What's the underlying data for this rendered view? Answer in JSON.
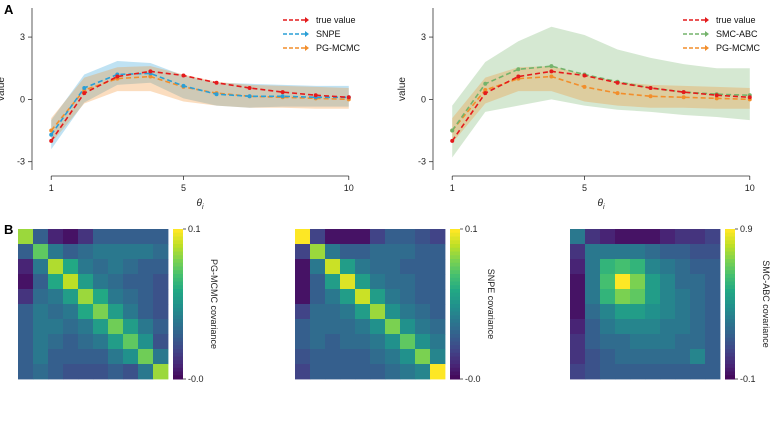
{
  "panels": {
    "a": "A",
    "b": "B"
  },
  "chart_data": [
    {
      "type": "line",
      "xlabel": "θi",
      "ylabel": "value",
      "xlim": [
        0.6,
        10.4
      ],
      "ylim": [
        -3.4,
        4.4
      ],
      "x_ticks": [
        1,
        5,
        10
      ],
      "y_ticks": [
        -3,
        0,
        3
      ],
      "grid": false,
      "legend_position": "top-right",
      "x": [
        1,
        2,
        3,
        4,
        5,
        6,
        7,
        8,
        9,
        10
      ],
      "series": [
        {
          "name": "true value",
          "color": "#e41a1c",
          "style": "dashed",
          "values": [
            -2.0,
            0.3,
            1.1,
            1.35,
            1.15,
            0.8,
            0.55,
            0.35,
            0.2,
            0.1
          ]
        },
        {
          "name": "SNPE",
          "color": "#2a9fd6",
          "style": "dashed",
          "values": [
            -1.7,
            0.55,
            1.2,
            1.25,
            0.65,
            0.25,
            0.15,
            0.15,
            0.1,
            0.1
          ],
          "band_lower": [
            -2.4,
            -0.15,
            0.7,
            0.8,
            0.05,
            -0.3,
            -0.4,
            -0.35,
            -0.35,
            -0.35
          ],
          "band_upper": [
            -1.0,
            1.2,
            1.85,
            1.75,
            1.15,
            0.8,
            0.75,
            0.7,
            0.65,
            0.65
          ]
        },
        {
          "name": "PG-MCMC",
          "color": "#f28e2b",
          "style": "dashed",
          "values": [
            -1.5,
            0.45,
            1.0,
            1.1,
            0.6,
            0.3,
            0.15,
            0.1,
            0.05,
            0.0
          ],
          "band_lower": [
            -2.1,
            -0.2,
            0.4,
            0.4,
            -0.1,
            -0.3,
            -0.4,
            -0.4,
            -0.45,
            -0.45
          ],
          "band_upper": [
            -0.9,
            1.05,
            1.55,
            1.6,
            1.2,
            0.85,
            0.7,
            0.65,
            0.6,
            0.55
          ]
        }
      ]
    },
    {
      "type": "line",
      "xlabel": "θi",
      "ylabel": "value",
      "xlim": [
        0.6,
        10.4
      ],
      "ylim": [
        -3.4,
        4.4
      ],
      "x_ticks": [
        1,
        5,
        10
      ],
      "y_ticks": [
        -3,
        0,
        3
      ],
      "grid": false,
      "legend_position": "top-right",
      "x": [
        1,
        2,
        3,
        4,
        5,
        6,
        7,
        8,
        9,
        10
      ],
      "series": [
        {
          "name": "true value",
          "color": "#e41a1c",
          "style": "dashed",
          "values": [
            -2.0,
            0.3,
            1.1,
            1.35,
            1.15,
            0.8,
            0.55,
            0.35,
            0.2,
            0.1
          ]
        },
        {
          "name": "SMC-ABC",
          "color": "#74b36b",
          "style": "dashed",
          "values": [
            -1.5,
            0.75,
            1.45,
            1.6,
            1.2,
            0.85,
            0.55,
            0.35,
            0.25,
            0.2
          ],
          "band_lower": [
            -2.8,
            -0.6,
            -0.3,
            0.0,
            -0.3,
            -0.5,
            -0.6,
            -0.75,
            -0.85,
            -1.0
          ],
          "band_upper": [
            -0.3,
            1.8,
            2.8,
            3.5,
            3.1,
            2.4,
            2.0,
            1.7,
            1.5,
            1.5
          ]
        },
        {
          "name": "PG-MCMC",
          "color": "#f28e2b",
          "style": "dashed",
          "values": [
            -1.5,
            0.45,
            1.0,
            1.1,
            0.6,
            0.3,
            0.15,
            0.1,
            0.05,
            0.0
          ],
          "band_lower": [
            -2.1,
            -0.2,
            0.4,
            0.4,
            -0.1,
            -0.3,
            -0.4,
            -0.4,
            -0.45,
            -0.45
          ],
          "band_upper": [
            -0.9,
            1.05,
            1.55,
            1.6,
            1.2,
            0.85,
            0.7,
            0.65,
            0.6,
            0.55
          ]
        }
      ]
    },
    {
      "type": "heatmap",
      "colorbar_label": "PG-MCMC covariance",
      "colorbar_ticks": [
        "0.1",
        "-0.0"
      ],
      "vmin": 0.0,
      "vmax": 0.1,
      "colormap": "viridis",
      "values": [
        [
          0.085,
          0.03,
          0.01,
          0.005,
          0.015,
          0.03,
          0.03,
          0.03,
          0.03,
          0.03
        ],
        [
          0.03,
          0.075,
          0.04,
          0.03,
          0.035,
          0.04,
          0.04,
          0.04,
          0.04,
          0.035
        ],
        [
          0.01,
          0.04,
          0.088,
          0.06,
          0.04,
          0.035,
          0.04,
          0.035,
          0.03,
          0.03
        ],
        [
          0.005,
          0.03,
          0.06,
          0.09,
          0.055,
          0.04,
          0.035,
          0.03,
          0.03,
          0.025
        ],
        [
          0.015,
          0.035,
          0.04,
          0.055,
          0.085,
          0.06,
          0.04,
          0.035,
          0.03,
          0.025
        ],
        [
          0.03,
          0.04,
          0.035,
          0.04,
          0.06,
          0.08,
          0.055,
          0.04,
          0.03,
          0.025
        ],
        [
          0.03,
          0.04,
          0.04,
          0.035,
          0.04,
          0.055,
          0.078,
          0.055,
          0.04,
          0.03
        ],
        [
          0.03,
          0.04,
          0.035,
          0.03,
          0.035,
          0.04,
          0.055,
          0.075,
          0.05,
          0.025
        ],
        [
          0.03,
          0.04,
          0.03,
          0.03,
          0.03,
          0.03,
          0.04,
          0.05,
          0.078,
          0.04
        ],
        [
          0.03,
          0.035,
          0.03,
          0.025,
          0.025,
          0.025,
          0.03,
          0.025,
          0.04,
          0.085
        ]
      ]
    },
    {
      "type": "heatmap",
      "colorbar_label": "SNPE covariance",
      "colorbar_ticks": [
        "0.1",
        "-0.0"
      ],
      "vmin": 0.0,
      "vmax": 0.1,
      "colormap": "viridis",
      "values": [
        [
          0.1,
          0.02,
          0.005,
          0.005,
          0.005,
          0.02,
          0.03,
          0.03,
          0.025,
          0.02
        ],
        [
          0.02,
          0.085,
          0.04,
          0.03,
          0.03,
          0.035,
          0.035,
          0.035,
          0.03,
          0.03
        ],
        [
          0.005,
          0.04,
          0.092,
          0.055,
          0.04,
          0.035,
          0.035,
          0.03,
          0.03,
          0.03
        ],
        [
          0.005,
          0.03,
          0.055,
          0.095,
          0.055,
          0.04,
          0.035,
          0.035,
          0.03,
          0.03
        ],
        [
          0.005,
          0.03,
          0.04,
          0.055,
          0.092,
          0.055,
          0.04,
          0.035,
          0.03,
          0.03
        ],
        [
          0.02,
          0.035,
          0.035,
          0.04,
          0.055,
          0.085,
          0.05,
          0.04,
          0.035,
          0.03
        ],
        [
          0.03,
          0.035,
          0.035,
          0.035,
          0.04,
          0.05,
          0.08,
          0.05,
          0.04,
          0.035
        ],
        [
          0.03,
          0.035,
          0.03,
          0.035,
          0.035,
          0.04,
          0.05,
          0.075,
          0.05,
          0.04
        ],
        [
          0.025,
          0.03,
          0.03,
          0.03,
          0.03,
          0.035,
          0.04,
          0.05,
          0.08,
          0.045
        ],
        [
          0.02,
          0.03,
          0.03,
          0.03,
          0.03,
          0.03,
          0.035,
          0.04,
          0.045,
          0.1
        ]
      ]
    },
    {
      "type": "heatmap",
      "colorbar_label": "SMC-ABC covariance",
      "colorbar_ticks": [
        "0.9",
        "-0.1"
      ],
      "vmin": -0.1,
      "vmax": 0.9,
      "colormap": "viridis",
      "values": [
        [
          0.3,
          0.05,
          0.0,
          -0.05,
          -0.05,
          -0.05,
          0.0,
          0.05,
          0.05,
          0.1
        ],
        [
          0.05,
          0.3,
          0.3,
          0.3,
          0.3,
          0.25,
          0.2,
          0.2,
          0.15,
          0.15
        ],
        [
          0.0,
          0.3,
          0.55,
          0.6,
          0.55,
          0.35,
          0.3,
          0.25,
          0.2,
          0.2
        ],
        [
          -0.05,
          0.3,
          0.6,
          0.9,
          0.7,
          0.45,
          0.35,
          0.25,
          0.25,
          0.2
        ],
        [
          -0.05,
          0.3,
          0.55,
          0.7,
          0.65,
          0.45,
          0.35,
          0.3,
          0.25,
          0.2
        ],
        [
          -0.05,
          0.25,
          0.35,
          0.45,
          0.45,
          0.4,
          0.35,
          0.3,
          0.25,
          0.2
        ],
        [
          0.0,
          0.2,
          0.3,
          0.35,
          0.35,
          0.35,
          0.3,
          0.3,
          0.25,
          0.2
        ],
        [
          0.05,
          0.2,
          0.25,
          0.25,
          0.3,
          0.3,
          0.3,
          0.25,
          0.25,
          0.2
        ],
        [
          0.05,
          0.15,
          0.2,
          0.25,
          0.25,
          0.25,
          0.25,
          0.25,
          0.35,
          0.2
        ],
        [
          0.1,
          0.15,
          0.2,
          0.2,
          0.2,
          0.2,
          0.2,
          0.2,
          0.2,
          0.2
        ]
      ]
    }
  ]
}
